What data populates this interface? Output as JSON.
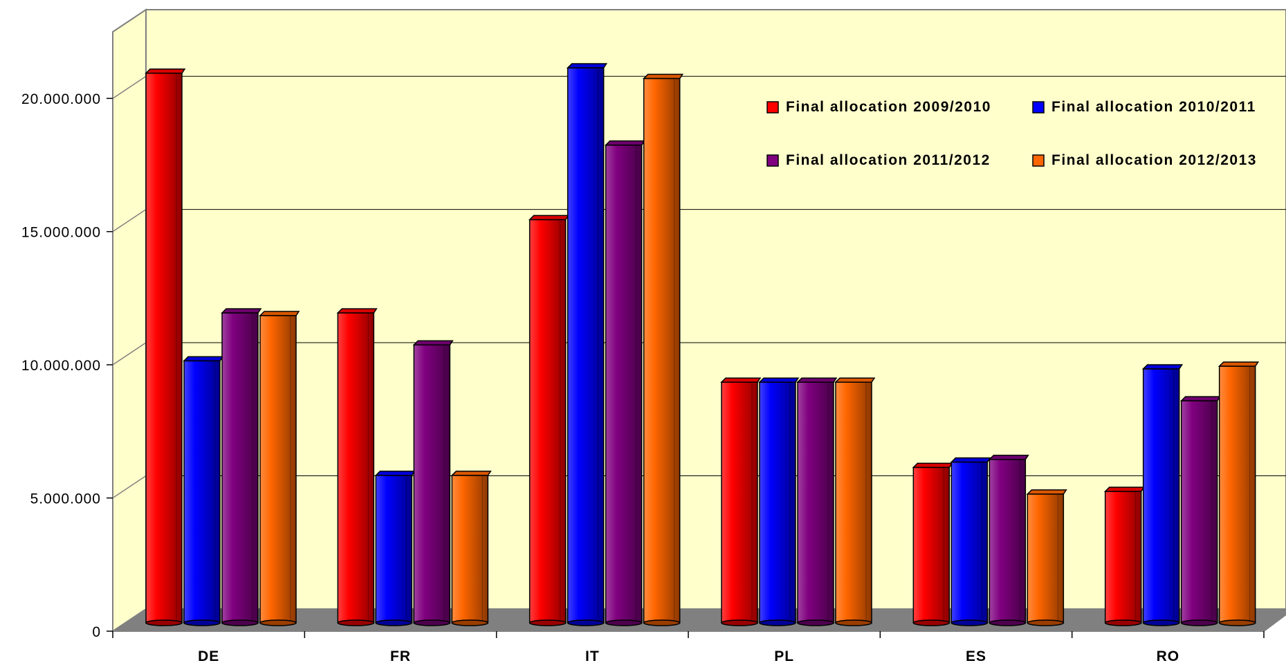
{
  "chart_data": {
    "type": "bar",
    "categories": [
      "DE",
      "FR",
      "IT",
      "PL",
      "ES",
      "RO"
    ],
    "series": [
      {
        "name": "Final allocation 2009/2010",
        "color": "#ff0000",
        "values": [
          21000000,
          12000000,
          15500000,
          9400000,
          6200000,
          5300000
        ]
      },
      {
        "name": "Final allocation 2010/2011",
        "color": "#0000ff",
        "values": [
          10200000,
          5900000,
          21200000,
          9400000,
          6400000,
          9900000
        ]
      },
      {
        "name": "Final allocation 2011/2012",
        "color": "#800080",
        "values": [
          12000000,
          10800000,
          18300000,
          9400000,
          6500000,
          8700000
        ]
      },
      {
        "name": "Final allocation 2012/2013",
        "color": "#ff6600",
        "values": [
          11900000,
          5900000,
          20800000,
          9400000,
          5200000,
          10000000
        ]
      }
    ],
    "ytick_labels": [
      "0",
      "5.000.000",
      "10.000.000",
      "15.000.000",
      "20.000.000"
    ],
    "ytick_values": [
      0,
      5000000,
      10000000,
      15000000,
      20000000
    ],
    "ylim": [
      0,
      22500000
    ],
    "grid": true,
    "legend_position": "top-right",
    "style": "3d-cylinder",
    "colors": {
      "wall": "#ffffcc",
      "floor": "#808080",
      "gridline": "#000000"
    }
  }
}
